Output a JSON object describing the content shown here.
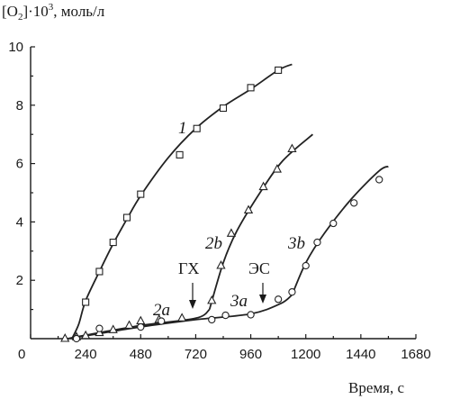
{
  "chart_data": {
    "type": "line",
    "title": "",
    "ylabel": "[O₂]·10³, моль/л",
    "ylabel_parts": {
      "prefix": "[O",
      "sub": "2",
      "mid": "]·10",
      "sup": "3",
      "suffix": ", моль/л"
    },
    "xlabel": "Время, с",
    "xlim": [
      0,
      1680
    ],
    "ylim": [
      0,
      10
    ],
    "xticks": [
      0,
      240,
      480,
      720,
      960,
      1200,
      1440,
      1680
    ],
    "yticks": [
      2,
      4,
      6,
      8,
      10
    ],
    "grid": false,
    "series": [
      {
        "name": "1",
        "marker": "square",
        "curve": [
          [
            180,
            0
          ],
          [
            210,
            0.5
          ],
          [
            240,
            1.3
          ],
          [
            300,
            2.3
          ],
          [
            360,
            3.25
          ],
          [
            420,
            4.1
          ],
          [
            480,
            4.9
          ],
          [
            600,
            6.2
          ],
          [
            720,
            7.2
          ],
          [
            840,
            7.95
          ],
          [
            960,
            8.55
          ],
          [
            1080,
            9.2
          ],
          [
            1140,
            9.4
          ]
        ],
        "points": [
          [
            240,
            1.25
          ],
          [
            300,
            2.3
          ],
          [
            360,
            3.3
          ],
          [
            420,
            4.15
          ],
          [
            480,
            4.95
          ],
          [
            650,
            6.3
          ],
          [
            725,
            7.2
          ],
          [
            840,
            7.9
          ],
          [
            960,
            8.6
          ],
          [
            1080,
            9.2
          ]
        ]
      },
      {
        "name": "2a",
        "marker": "triangle",
        "curve": [
          [
            160,
            0
          ],
          [
            240,
            0.12
          ],
          [
            480,
            0.45
          ],
          [
            720,
            0.7
          ],
          [
            780,
            1.0
          ]
        ],
        "points": [
          [
            150,
            0
          ],
          [
            200,
            0.05
          ],
          [
            240,
            0.1
          ],
          [
            300,
            0.2
          ],
          [
            360,
            0.3
          ],
          [
            430,
            0.45
          ],
          [
            480,
            0.6
          ],
          [
            560,
            0.65
          ],
          [
            660,
            0.7
          ]
        ]
      },
      {
        "name": "2b",
        "marker": "triangle",
        "curve": [
          [
            780,
            1.0
          ],
          [
            840,
            2.6
          ],
          [
            900,
            3.7
          ],
          [
            1000,
            5.0
          ],
          [
            1100,
            6.1
          ],
          [
            1230,
            7.0
          ]
        ],
        "points": [
          [
            790,
            1.3
          ],
          [
            830,
            2.5
          ],
          [
            875,
            3.6
          ],
          [
            950,
            4.4
          ],
          [
            1015,
            5.2
          ],
          [
            1075,
            5.8
          ],
          [
            1140,
            6.5
          ]
        ]
      },
      {
        "name": "3a",
        "marker": "circle",
        "curve": [
          [
            180,
            0.02
          ],
          [
            480,
            0.4
          ],
          [
            720,
            0.65
          ],
          [
            960,
            0.85
          ],
          [
            1090,
            1.2
          ],
          [
            1140,
            1.5
          ]
        ],
        "points": [
          [
            200,
            0
          ],
          [
            300,
            0.35
          ],
          [
            480,
            0.4
          ],
          [
            570,
            0.6
          ],
          [
            790,
            0.65
          ],
          [
            850,
            0.8
          ],
          [
            960,
            0.82
          ],
          [
            1080,
            1.35
          ],
          [
            1140,
            1.6
          ]
        ]
      },
      {
        "name": "3b",
        "marker": "circle",
        "curve": [
          [
            1140,
            1.5
          ],
          [
            1200,
            2.6
          ],
          [
            1280,
            3.6
          ],
          [
            1400,
            4.8
          ],
          [
            1520,
            5.75
          ],
          [
            1560,
            5.9
          ]
        ],
        "points": [
          [
            1200,
            2.5
          ],
          [
            1250,
            3.3
          ],
          [
            1320,
            3.95
          ],
          [
            1410,
            4.65
          ],
          [
            1520,
            5.45
          ]
        ]
      }
    ],
    "annotations": [
      {
        "label": "ГХ",
        "x": 720
      },
      {
        "label": "ЭС",
        "x": 985
      }
    ]
  }
}
